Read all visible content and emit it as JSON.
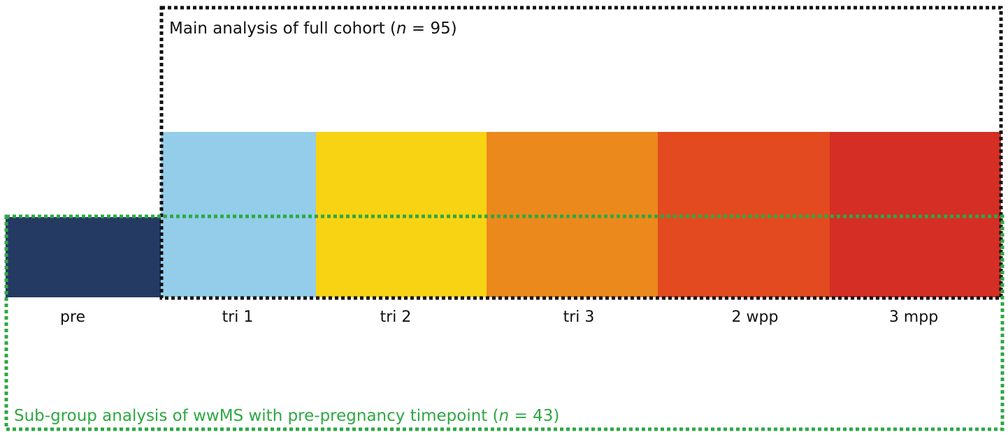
{
  "main_box": {
    "label": {
      "before": "Main analysis of full cohort (",
      "italic": "n",
      "after": " = 95)"
    }
  },
  "subgroup_box": {
    "label": {
      "before": "Sub-group analysis of wwMS with pre-pregnancy timepoint (",
      "italic": "n",
      "after": " = 43)"
    }
  },
  "timepoints": [
    {
      "label": "pre",
      "color": "#243a63"
    },
    {
      "label": "tri 1",
      "color": "#93cde9"
    },
    {
      "label": "tri 2",
      "color": "#f8d313"
    },
    {
      "label": "tri 3",
      "color": "#ec891d"
    },
    {
      "label": "2 wpp",
      "color": "#e34a1f"
    },
    {
      "label": "3 mpp",
      "color": "#d42e25"
    }
  ]
}
